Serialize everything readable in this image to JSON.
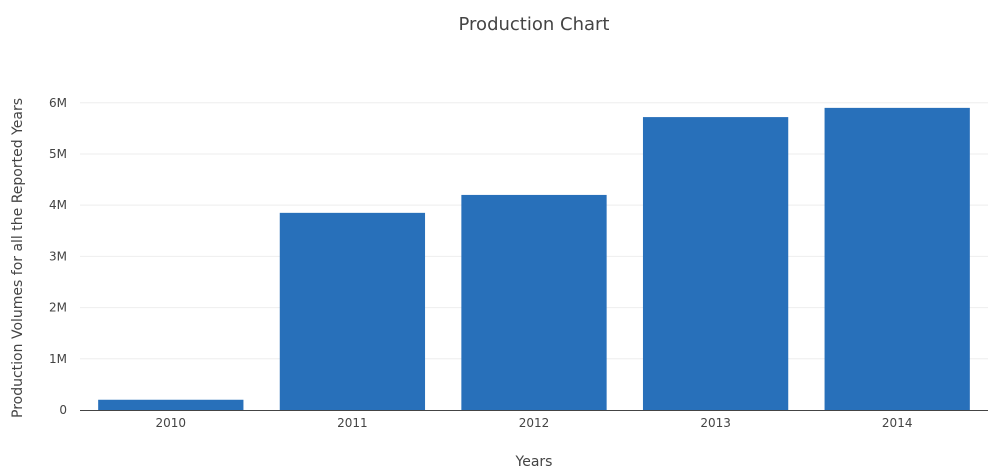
{
  "chart_data": {
    "type": "bar",
    "title": "Production Chart",
    "xlabel": "Years",
    "ylabel": "Production Volumes for all the Reported Years",
    "categories": [
      "2010",
      "2011",
      "2012",
      "2013",
      "2014"
    ],
    "values": [
      200000,
      3850000,
      4200000,
      5720000,
      5900000
    ],
    "yticks": [
      0,
      1000000,
      2000000,
      3000000,
      4000000,
      5000000,
      6000000
    ],
    "ytick_labels": [
      "0",
      "1M",
      "2M",
      "3M",
      "4M",
      "5M",
      "6M"
    ],
    "ylim": [
      0,
      6210000
    ],
    "grid": true,
    "legend": "none",
    "bar_color": "#2870ba"
  }
}
